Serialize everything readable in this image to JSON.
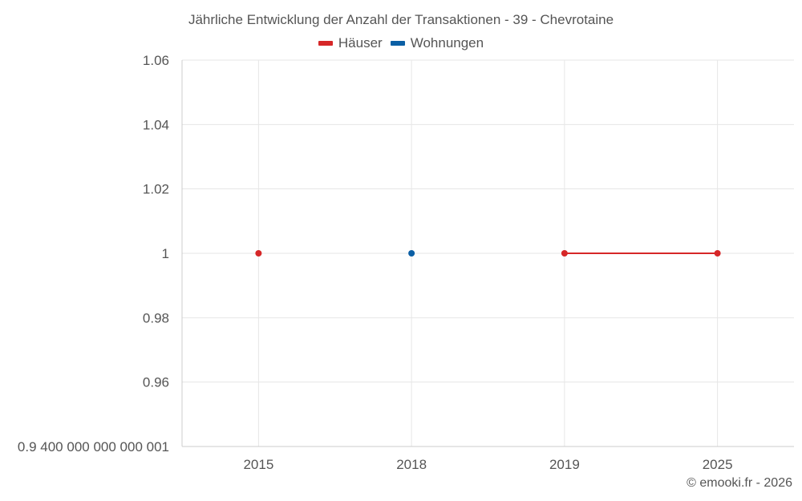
{
  "chart_data": {
    "type": "line",
    "title": "Jährliche Entwicklung der Anzahl der Transaktionen - 39 - Chevrotaine",
    "categories": [
      "2015",
      "2018",
      "2019",
      "2025"
    ],
    "y_ticks": [
      "1.06",
      "1.04",
      "1.02",
      "1",
      "0.98",
      "0.96",
      "0.9 400 000 000 000 001"
    ],
    "y_tick_values": [
      1.06,
      1.04,
      1.02,
      1.0,
      0.98,
      0.96,
      0.94
    ],
    "ylim": [
      0.94,
      1.06
    ],
    "series": [
      {
        "name": "Häuser",
        "color": "#d62728",
        "values": [
          1,
          null,
          1,
          1
        ]
      },
      {
        "name": "Wohnungen",
        "color": "#0b5fa5",
        "values": [
          null,
          1,
          null,
          null
        ]
      }
    ],
    "legend_position": "top-center",
    "grid": true
  },
  "credit": "© emooki.fr - 2026"
}
